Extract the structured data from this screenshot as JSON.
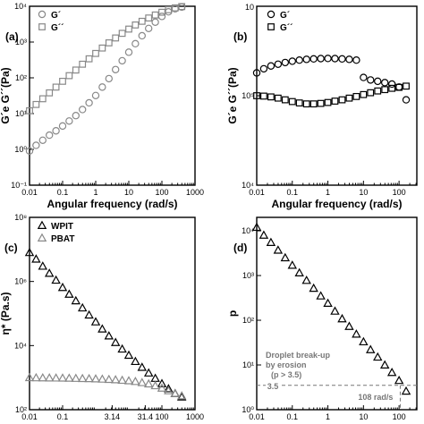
{
  "colors": {
    "black": "#000000",
    "gray": "#888888",
    "annotation": "#777777"
  },
  "chart_data": [
    {
      "panel": "(a)",
      "type": "scatter",
      "xlabel": "Angular frequency (rad/s)",
      "ylabel": "G´e G´´(Pa)",
      "xscale": "log",
      "yscale": "log",
      "xlim": [
        0.01,
        1000
      ],
      "ylim": [
        0.1,
        10000
      ],
      "xticks": [
        "0.01",
        "0.1",
        "1",
        "10",
        "100",
        "1000"
      ],
      "yticks": [
        "10⁻¹",
        "10⁰",
        "10¹",
        "10²",
        "10³",
        "10⁴"
      ],
      "legend": "top-left",
      "series": [
        {
          "name": "G´",
          "marker": "circle",
          "color": "#888888",
          "x": [
            0.01,
            0.0158,
            0.0251,
            0.0398,
            0.0631,
            0.1,
            0.158,
            0.251,
            0.398,
            0.631,
            1,
            1.58,
            2.51,
            3.98,
            6.31,
            10,
            15.8,
            25.1,
            39.8,
            63.1,
            100,
            158,
            251,
            398
          ],
          "y": [
            0.9,
            1.3,
            1.8,
            2.5,
            3.3,
            4.5,
            6.2,
            8.8,
            13,
            20,
            32,
            55,
            95,
            170,
            300,
            520,
            900,
            1500,
            2400,
            3600,
            5200,
            7000,
            8500,
            9500
          ]
        },
        {
          "name": "G´´",
          "marker": "square",
          "color": "#888888",
          "x": [
            0.01,
            0.0158,
            0.0251,
            0.0398,
            0.0631,
            0.1,
            0.158,
            0.251,
            0.398,
            0.631,
            1,
            1.58,
            2.51,
            3.98,
            6.31,
            10,
            15.8,
            25.1,
            39.8,
            63.1,
            100,
            158,
            251,
            398
          ],
          "y": [
            12,
            18,
            26,
            38,
            55,
            80,
            115,
            165,
            240,
            340,
            480,
            680,
            950,
            1300,
            1750,
            2300,
            3000,
            3800,
            4700,
            5700,
            6800,
            8000,
            9000,
            9800
          ]
        }
      ]
    },
    {
      "panel": "(b)",
      "type": "scatter",
      "xlabel": "Angular frequency (rad/s)",
      "ylabel": "G´e G´´(Pa)",
      "xscale": "log",
      "yscale": "log",
      "xlim": [
        0.01,
        316
      ],
      "ylim": [
        10000,
        1000000
      ],
      "xticks": [
        "0.01",
        "0.1",
        "1",
        "10",
        "100"
      ],
      "yticks": [
        "10⁴",
        "10⁵",
        "10"
      ],
      "legend": "top-left",
      "series": [
        {
          "name": "G´",
          "marker": "circle",
          "color": "#000000",
          "x": [
            0.01,
            0.0158,
            0.0251,
            0.0398,
            0.0631,
            0.1,
            0.158,
            0.251,
            0.398,
            0.631,
            1,
            1.58,
            2.51,
            3.98,
            6.31,
            10,
            15.8,
            25.1,
            39.8,
            63.1,
            100,
            158
          ],
          "y": [
            180000,
            200000,
            215000,
            225000,
            235000,
            243000,
            250000,
            255000,
            258000,
            260000,
            261000,
            260000,
            258000,
            255000,
            250000,
            160000,
            150000,
            145000,
            140000,
            135000,
            125000,
            90000
          ]
        },
        {
          "name": "G´´",
          "marker": "square",
          "color": "#000000",
          "x": [
            0.01,
            0.0158,
            0.0251,
            0.0398,
            0.0631,
            0.1,
            0.158,
            0.251,
            0.398,
            0.631,
            1,
            1.58,
            2.51,
            3.98,
            6.31,
            10,
            15.8,
            25.1,
            39.8,
            63.1,
            100,
            158
          ],
          "y": [
            100000,
            99000,
            97000,
            94000,
            90000,
            86000,
            83000,
            81000,
            81000,
            82000,
            84000,
            87000,
            90000,
            94000,
            98000,
            103000,
            108000,
            113000,
            117000,
            121000,
            124000,
            128000
          ]
        }
      ]
    },
    {
      "panel": "(c)",
      "type": "scatter",
      "xlabel": "Angular frequency (rad/s)",
      "ylabel": "η* (Pa.s)",
      "xscale": "log",
      "yscale": "log",
      "xlim": [
        0.01,
        1000
      ],
      "ylim": [
        100,
        100000000
      ],
      "xticks": [
        "0.01",
        "0.1",
        "3.14",
        "31.4",
        "100",
        "1000"
      ],
      "yticks": [
        "10²",
        "10⁴",
        "10⁶",
        "10⁸"
      ],
      "legend": "top-left",
      "series": [
        {
          "name": "WPIT",
          "marker": "triangle",
          "color": "#000000",
          "x": [
            0.01,
            0.0158,
            0.0251,
            0.0398,
            0.0631,
            0.1,
            0.158,
            0.251,
            0.398,
            0.631,
            1,
            1.58,
            2.51,
            3.98,
            6.31,
            10,
            15.8,
            25.1,
            39.8,
            63.1,
            100,
            158,
            251,
            398
          ],
          "y": [
            8000000,
            5000000,
            3000000,
            1800000,
            1100000,
            650000,
            400000,
            250000,
            150000,
            90000,
            55000,
            33000,
            20000,
            12500,
            7800,
            5000,
            3200,
            2100,
            1400,
            950,
            650,
            450,
            320,
            250
          ]
        },
        {
          "name": "PBAT",
          "marker": "triangle",
          "color": "#888888",
          "x": [
            0.01,
            0.0158,
            0.0251,
            0.0398,
            0.0631,
            0.1,
            0.158,
            0.251,
            0.398,
            0.631,
            1,
            1.58,
            2.51,
            3.98,
            6.31,
            10,
            15.8,
            25.1,
            39.8,
            63.1,
            100,
            158,
            251,
            398
          ],
          "y": [
            1000,
            990,
            985,
            980,
            975,
            970,
            960,
            950,
            940,
            930,
            915,
            900,
            880,
            860,
            830,
            800,
            760,
            700,
            640,
            560,
            470,
            390,
            320,
            270
          ]
        }
      ]
    },
    {
      "panel": "(d)",
      "type": "scatter",
      "xlabel": "Angular frequency (rad/s)",
      "ylabel": "p",
      "xscale": "log",
      "yscale": "log",
      "xlim": [
        0.01,
        316
      ],
      "ylim": [
        1,
        20000
      ],
      "xticks": [
        "0.01",
        "0.1",
        "1",
        "10",
        "100"
      ],
      "yticks": [
        "10⁰",
        "10¹",
        "10²",
        "10³",
        "10⁴"
      ],
      "annotations": [
        "Droplet break-up",
        "by erosion",
        "(p > 3.5)",
        "3.5",
        "108 rad/s"
      ],
      "reference": {
        "y": 3.5,
        "x": 108
      },
      "series": [
        {
          "name": "",
          "marker": "triangle",
          "color": "#000000",
          "x": [
            0.01,
            0.0158,
            0.0251,
            0.0398,
            0.0631,
            0.1,
            0.158,
            0.251,
            0.398,
            0.631,
            1,
            1.58,
            2.51,
            3.98,
            6.31,
            10,
            15.8,
            25.1,
            39.8,
            63.1,
            100,
            158
          ],
          "y": [
            12000,
            8000,
            5500,
            3700,
            2500,
            1700,
            1150,
            780,
            520,
            350,
            240,
            160,
            108,
            73,
            49,
            33,
            22,
            15,
            10,
            6.8,
            4.5,
            2.6
          ]
        }
      ]
    }
  ]
}
